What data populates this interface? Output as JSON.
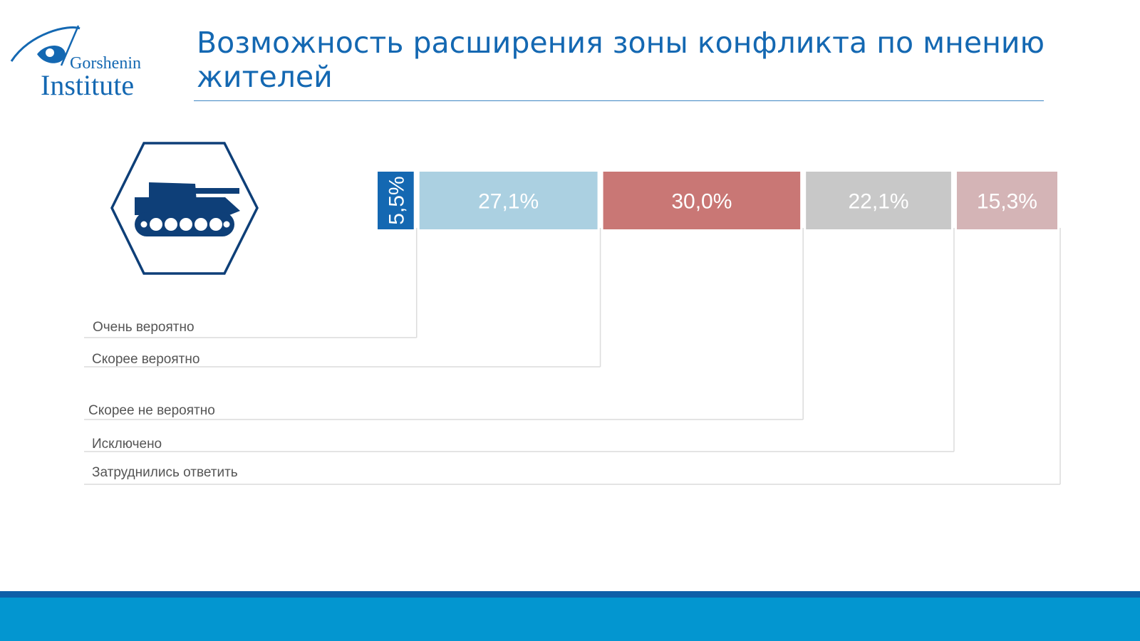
{
  "logo": {
    "line1": "Gorshenin",
    "line2": "Institute"
  },
  "title": "Возможность расширения зоны конфликта по мнению жителей",
  "icon": "tank-icon",
  "colors": {
    "brand": "#1468b2",
    "footer": "#0396d0",
    "footer_dark": "#0e5fa8"
  },
  "chart_data": {
    "type": "bar",
    "orientation": "horizontal-stacked",
    "categories": [
      "Очень вероятно",
      "Скорее вероятно",
      "Скорее не вероятно",
      "Исключено",
      "Затруднились ответить"
    ],
    "values": [
      5.5,
      27.1,
      30.0,
      22.1,
      15.3
    ],
    "value_labels": [
      "5,5%",
      "27,1%",
      "30,0%",
      "22,1%",
      "15,3%"
    ],
    "colors": [
      "#1468b2",
      "#abd0e1",
      "#c97775",
      "#c8c8c8",
      "#d4b4b6"
    ],
    "unit": "%",
    "legend": "left"
  }
}
